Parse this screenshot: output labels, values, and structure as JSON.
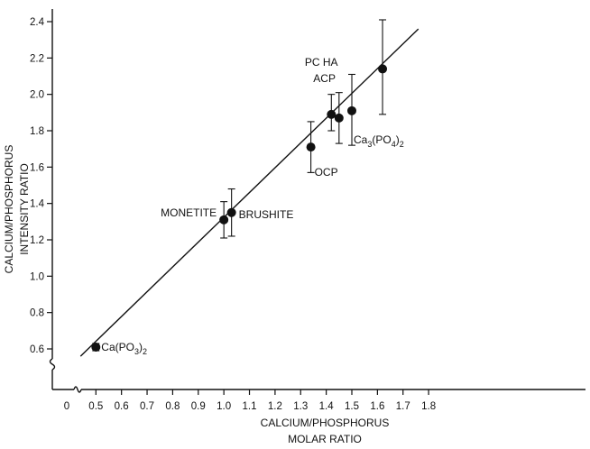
{
  "chart_data": {
    "type": "scatter",
    "title": "",
    "xlabel_lines": [
      "CALCIUM/PHOSPHORUS",
      "MOLAR RATIO"
    ],
    "ylabel_lines": [
      "CALCIUM/PHOSPHORUS",
      "INTENSITY RATIO"
    ],
    "x_ticks": [
      "0",
      "0.5",
      "0.6",
      "0.7",
      "0.8",
      "0.9",
      "1.0",
      "1.1",
      "1.2",
      "1.3",
      "1.4",
      "1.5",
      "1.6",
      "1.7",
      "1.8"
    ],
    "y_ticks": [
      "0.6",
      "0.8",
      "1.0",
      "1.2",
      "1.4",
      "1.6",
      "1.8",
      "2.0",
      "2.2",
      "2.4"
    ],
    "xlim": [
      0.4,
      1.8
    ],
    "ylim": [
      0.5,
      2.45
    ],
    "axis_breaks": [
      "x",
      "y"
    ],
    "grid": false,
    "points": [
      {
        "label": "Ca(PO3)2",
        "x": 0.5,
        "y": 0.61,
        "y_low": 0.59,
        "y_high": 0.63
      },
      {
        "label": "MONETITE",
        "x": 1.0,
        "y": 1.31,
        "y_low": 1.21,
        "y_high": 1.41
      },
      {
        "label": "BRUSHITE",
        "x": 1.03,
        "y": 1.35,
        "y_low": 1.22,
        "y_high": 1.48
      },
      {
        "label": "OCP",
        "x": 1.34,
        "y": 1.71,
        "y_low": 1.57,
        "y_high": 1.85
      },
      {
        "label": "ACP",
        "x": 1.42,
        "y": 1.89,
        "y_low": 1.8,
        "y_high": 2.0
      },
      {
        "label": "PC HA",
        "x": 1.45,
        "y": 1.87,
        "y_low": 1.73,
        "y_high": 2.01
      },
      {
        "label": "Ca3(PO4)2",
        "x": 1.5,
        "y": 1.91,
        "y_low": 1.72,
        "y_high": 2.11
      },
      {
        "label": "HA",
        "x": 1.62,
        "y": 2.14,
        "y_low": 1.89,
        "y_high": 2.41
      }
    ],
    "fit_line": {
      "x": [
        0.44,
        1.76
      ],
      "y": [
        0.56,
        2.36
      ]
    },
    "point_labels": {
      "ca_po3": {
        "base": "Ca(PO",
        "sub": "3",
        "tail": ")",
        "sub2": "2"
      },
      "monetite": "MONETITE",
      "brushite": "BRUSHITE",
      "ocp": "OCP",
      "acp": "ACP",
      "pcha": "PC HA",
      "ca3po4": {
        "base": "Ca",
        "sub": "3",
        "mid": "(PO",
        "sub2": "4",
        "tail": ")",
        "sub3": "2"
      },
      "ha": "HA"
    }
  }
}
